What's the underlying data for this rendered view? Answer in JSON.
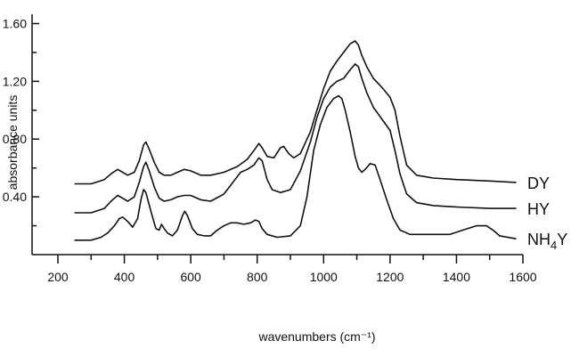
{
  "chart_data": {
    "type": "line",
    "title": "",
    "xlabel": "wavenumbers (cm⁻¹)",
    "ylabel": "absorbance units",
    "xlim": [
      200,
      1600
    ],
    "ylim": [
      0,
      1.64
    ],
    "grid": false,
    "legend": "labels at right end of each curve",
    "x_ticks": [
      "200",
      "400",
      "600",
      "800",
      "1000",
      "1200",
      "1400",
      "1600"
    ],
    "y_ticks": [
      "0.40",
      "0.80",
      "1.20",
      "1.60"
    ],
    "series": [
      {
        "name": "DY",
        "label_main": "DY",
        "label_sub": "",
        "label_tail": "",
        "x": [
          250,
          300,
          340,
          360,
          380,
          395,
          410,
          430,
          445,
          458,
          465,
          475,
          490,
          505,
          520,
          540,
          560,
          580,
          600,
          630,
          660,
          700,
          740,
          770,
          790,
          805,
          815,
          830,
          850,
          870,
          880,
          895,
          910,
          930,
          960,
          980,
          1000,
          1020,
          1040,
          1060,
          1080,
          1095,
          1105,
          1115,
          1130,
          1150,
          1175,
          1200,
          1215,
          1230,
          1250,
          1280,
          1330,
          1400,
          1500,
          1580
        ],
        "y": [
          0.49,
          0.49,
          0.52,
          0.56,
          0.59,
          0.57,
          0.55,
          0.57,
          0.65,
          0.76,
          0.78,
          0.73,
          0.64,
          0.57,
          0.55,
          0.55,
          0.57,
          0.59,
          0.58,
          0.55,
          0.55,
          0.57,
          0.61,
          0.66,
          0.72,
          0.77,
          0.74,
          0.68,
          0.67,
          0.74,
          0.75,
          0.7,
          0.67,
          0.7,
          0.85,
          1.0,
          1.15,
          1.27,
          1.34,
          1.4,
          1.46,
          1.48,
          1.45,
          1.38,
          1.3,
          1.22,
          1.16,
          1.09,
          1.0,
          0.82,
          0.62,
          0.55,
          0.53,
          0.52,
          0.51,
          0.5
        ]
      },
      {
        "name": "HY",
        "label_main": "HY",
        "label_sub": "",
        "label_tail": "",
        "x": [
          250,
          300,
          340,
          360,
          380,
          395,
          410,
          430,
          445,
          458,
          465,
          475,
          490,
          505,
          520,
          540,
          560,
          580,
          600,
          630,
          660,
          700,
          730,
          750,
          770,
          790,
          805,
          815,
          830,
          845,
          870,
          900,
          930,
          960,
          980,
          1000,
          1020,
          1040,
          1060,
          1080,
          1095,
          1105,
          1115,
          1130,
          1150,
          1175,
          1200,
          1215,
          1230,
          1250,
          1280,
          1330,
          1400,
          1500,
          1580
        ],
        "y": [
          0.29,
          0.29,
          0.32,
          0.37,
          0.41,
          0.39,
          0.37,
          0.4,
          0.5,
          0.61,
          0.64,
          0.58,
          0.47,
          0.39,
          0.37,
          0.38,
          0.4,
          0.41,
          0.41,
          0.38,
          0.37,
          0.42,
          0.51,
          0.57,
          0.59,
          0.62,
          0.67,
          0.65,
          0.52,
          0.45,
          0.43,
          0.45,
          0.58,
          0.78,
          0.95,
          1.08,
          1.16,
          1.2,
          1.22,
          1.28,
          1.32,
          1.3,
          1.22,
          1.12,
          1.02,
          0.94,
          0.86,
          0.72,
          0.56,
          0.42,
          0.36,
          0.34,
          0.33,
          0.32,
          0.32
        ]
      },
      {
        "name": "NH4Y",
        "label_main": "NH",
        "label_sub": "4",
        "label_tail": "Y",
        "x": [
          250,
          300,
          330,
          350,
          370,
          385,
          395,
          410,
          425,
          440,
          450,
          458,
          465,
          480,
          495,
          505,
          512,
          520,
          530,
          545,
          560,
          575,
          582,
          590,
          605,
          620,
          640,
          660,
          680,
          700,
          720,
          740,
          760,
          780,
          795,
          805,
          815,
          830,
          860,
          900,
          930,
          950,
          970,
          990,
          1010,
          1030,
          1045,
          1055,
          1065,
          1080,
          1095,
          1105,
          1115,
          1125,
          1140,
          1155,
          1170,
          1190,
          1210,
          1230,
          1260,
          1300,
          1340,
          1380,
          1420,
          1460,
          1490,
          1510,
          1530,
          1580
        ],
        "y": [
          0.1,
          0.1,
          0.12,
          0.15,
          0.2,
          0.25,
          0.26,
          0.23,
          0.19,
          0.25,
          0.38,
          0.45,
          0.43,
          0.3,
          0.18,
          0.17,
          0.21,
          0.18,
          0.15,
          0.13,
          0.17,
          0.27,
          0.3,
          0.27,
          0.18,
          0.14,
          0.13,
          0.13,
          0.17,
          0.2,
          0.22,
          0.22,
          0.21,
          0.22,
          0.24,
          0.23,
          0.18,
          0.14,
          0.12,
          0.13,
          0.2,
          0.4,
          0.72,
          0.9,
          1.02,
          1.08,
          1.1,
          1.08,
          1.0,
          0.85,
          0.68,
          0.6,
          0.57,
          0.59,
          0.63,
          0.62,
          0.52,
          0.38,
          0.25,
          0.17,
          0.14,
          0.14,
          0.14,
          0.14,
          0.17,
          0.2,
          0.2,
          0.17,
          0.13,
          0.11
        ]
      }
    ]
  }
}
